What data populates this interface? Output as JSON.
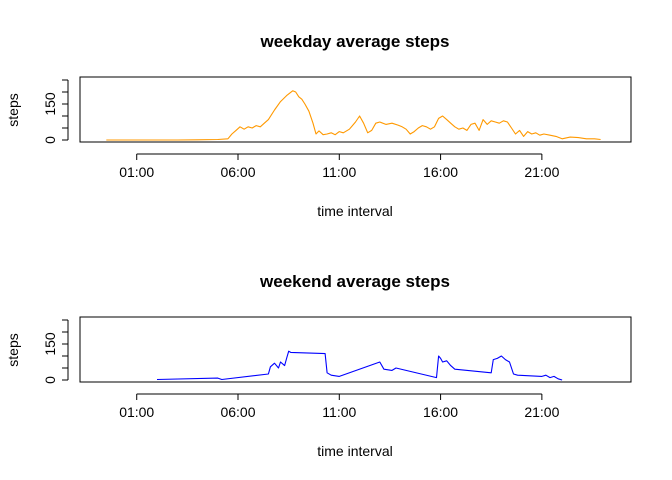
{
  "chart_data": [
    {
      "type": "line",
      "title": "weekday average steps",
      "xlabel": "time interval",
      "ylabel": "steps",
      "color": "#FF9900",
      "ylim": [
        0,
        250
      ],
      "xlim": [
        -1.8,
        25.4
      ],
      "xticks": [
        1,
        6,
        11,
        16,
        21
      ],
      "xtick_labels": [
        "01:00",
        "06:00",
        "11:00",
        "16:00",
        "21:00"
      ],
      "yticks": [
        0,
        50,
        100,
        150,
        200,
        250
      ],
      "ytick_labels": [
        "0",
        "",
        "",
        "150",
        "",
        ""
      ],
      "x": [
        -0.5,
        1.0,
        2.0,
        3.0,
        4.0,
        5.0,
        5.5,
        5.7,
        5.9,
        6.1,
        6.3,
        6.5,
        6.7,
        6.9,
        7.1,
        7.3,
        7.5,
        7.8,
        8.1,
        8.4,
        8.7,
        8.85,
        9.0,
        9.15,
        9.3,
        9.5,
        9.7,
        9.85,
        10.0,
        10.2,
        10.4,
        10.6,
        10.8,
        11.0,
        11.2,
        11.5,
        11.8,
        12.0,
        12.2,
        12.4,
        12.6,
        12.8,
        13.0,
        13.3,
        13.6,
        13.9,
        14.1,
        14.3,
        14.5,
        14.7,
        14.9,
        15.1,
        15.3,
        15.5,
        15.7,
        15.9,
        16.1,
        16.3,
        16.5,
        16.7,
        16.9,
        17.1,
        17.3,
        17.5,
        17.7,
        17.9,
        18.1,
        18.3,
        18.5,
        18.7,
        18.9,
        19.1,
        19.3,
        19.5,
        19.7,
        19.9,
        20.1,
        20.3,
        20.5,
        20.7,
        20.9,
        21.1,
        21.4,
        21.7,
        22.0,
        22.4,
        22.8,
        23.2,
        23.6,
        23.9
      ],
      "values": [
        0,
        0,
        0,
        0,
        1,
        2,
        5,
        25,
        40,
        55,
        45,
        55,
        50,
        60,
        55,
        70,
        85,
        125,
        160,
        185,
        205,
        200,
        180,
        170,
        150,
        120,
        70,
        25,
        38,
        22,
        25,
        30,
        22,
        35,
        30,
        45,
        75,
        100,
        70,
        30,
        40,
        70,
        75,
        65,
        70,
        62,
        55,
        45,
        25,
        35,
        50,
        60,
        55,
        45,
        55,
        90,
        100,
        85,
        70,
        55,
        45,
        50,
        40,
        65,
        70,
        40,
        85,
        65,
        80,
        75,
        70,
        80,
        75,
        50,
        25,
        40,
        15,
        35,
        25,
        30,
        20,
        25,
        20,
        15,
        5,
        12,
        10,
        5,
        5,
        2
      ]
    },
    {
      "type": "line",
      "title": "weekend average steps",
      "xlabel": "time interval",
      "ylabel": "steps",
      "color": "#0000FF",
      "ylim": [
        0,
        250
      ],
      "xlim": [
        -1.8,
        25.4
      ],
      "xticks": [
        1,
        6,
        11,
        16,
        21
      ],
      "xtick_labels": [
        "01:00",
        "06:00",
        "11:00",
        "16:00",
        "21:00"
      ],
      "yticks": [
        0,
        50,
        100,
        150,
        200,
        250
      ],
      "ytick_labels": [
        "0",
        "",
        "",
        "150",
        "",
        ""
      ],
      "x": [
        2.0,
        5.0,
        5.2,
        7.5,
        7.6,
        7.8,
        8.0,
        8.1,
        8.3,
        8.4,
        8.5,
        8.6,
        10.3,
        10.4,
        10.6,
        11.0,
        13.0,
        13.2,
        13.6,
        13.8,
        15.8,
        15.9,
        16.0,
        16.1,
        16.3,
        16.5,
        16.7,
        18.5,
        18.6,
        18.8,
        19.0,
        19.2,
        19.4,
        19.6,
        19.8,
        21.0,
        21.2,
        21.4,
        21.6,
        21.8,
        22.0
      ],
      "values": [
        2,
        8,
        2,
        25,
        55,
        70,
        50,
        75,
        60,
        90,
        120,
        115,
        110,
        30,
        20,
        15,
        75,
        45,
        40,
        50,
        10,
        100,
        90,
        75,
        80,
        60,
        45,
        30,
        85,
        90,
        100,
        85,
        75,
        25,
        20,
        15,
        20,
        10,
        15,
        5,
        0
      ]
    }
  ]
}
